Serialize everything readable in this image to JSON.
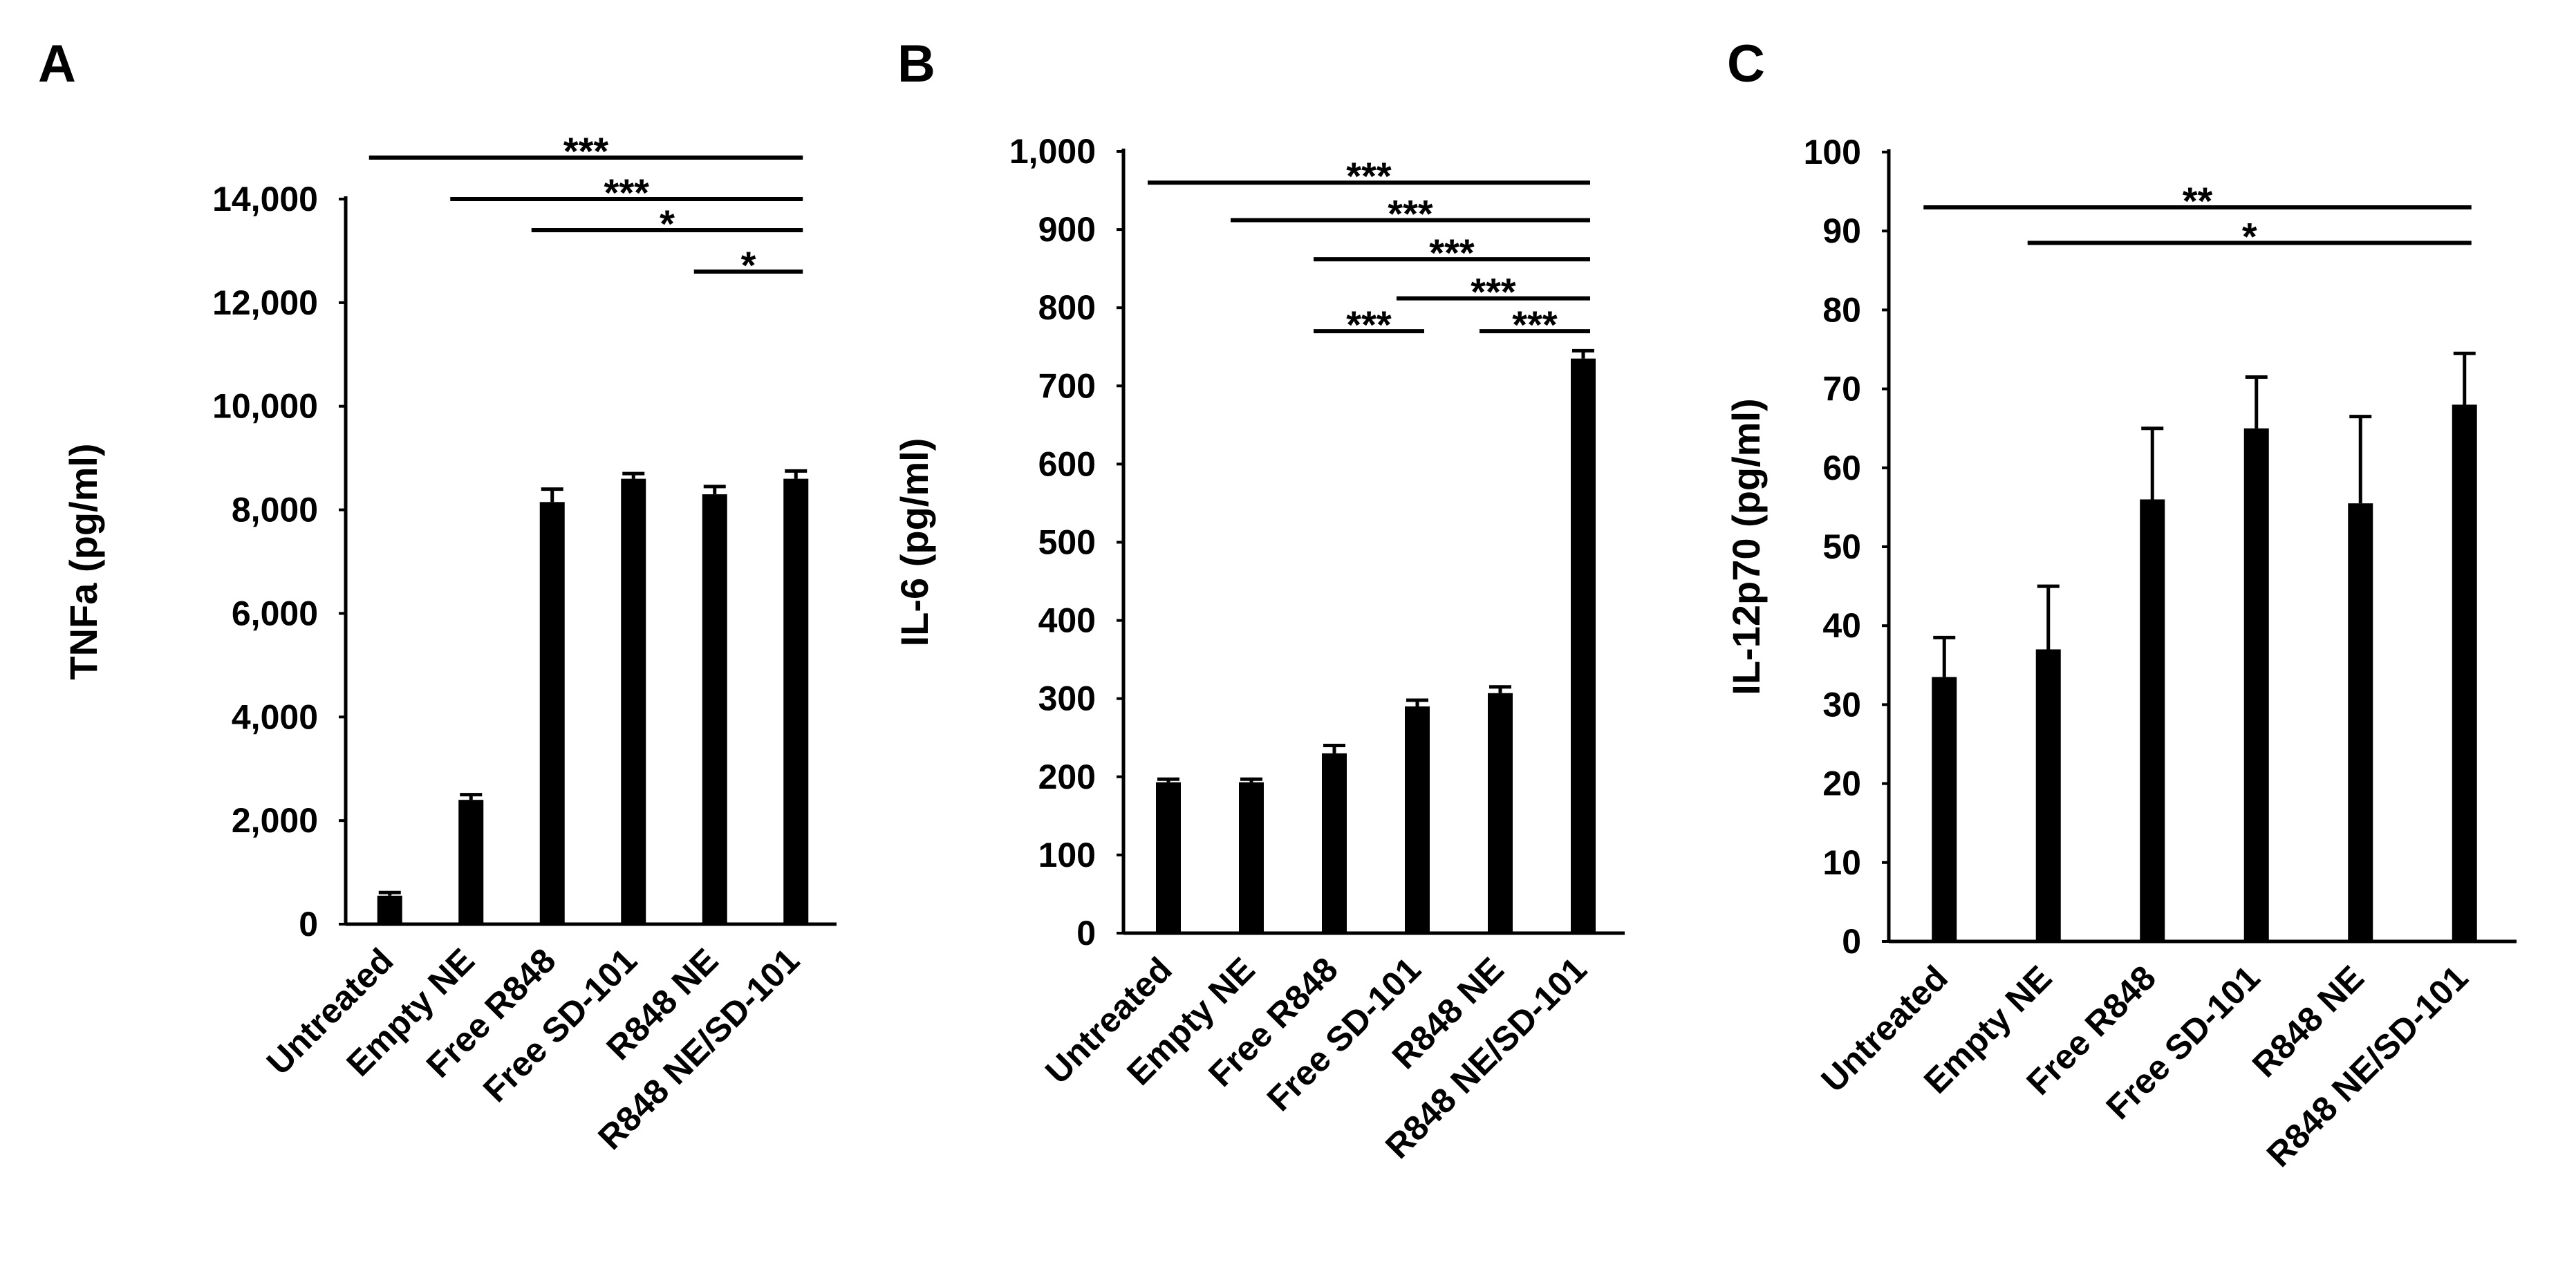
{
  "figure": {
    "panels": [
      "A",
      "B",
      "C"
    ]
  },
  "chart_data": [
    {
      "panel": "A",
      "type": "bar",
      "ylabel": "TNFa (pg/ml)",
      "xlabel": "",
      "ylim": [
        0,
        14000
      ],
      "yticks": [
        0,
        2000,
        4000,
        6000,
        8000,
        10000,
        12000,
        14000
      ],
      "ytick_labels": [
        "0",
        "2,000",
        "4,000",
        "6,000",
        "8,000",
        "10,000",
        "12,000",
        "14,000"
      ],
      "categories": [
        "Untreated",
        "Empty NE",
        "Free R848",
        "Free SD-101",
        "R848 NE",
        "R848 NE/SD-101"
      ],
      "values": [
        550,
        2400,
        8150,
        8600,
        8300,
        8600
      ],
      "errors": [
        60,
        100,
        250,
        100,
        150,
        150
      ],
      "color": "#000000",
      "significance": [
        {
          "from": 0,
          "to": 5,
          "y": 14800,
          "label": "***"
        },
        {
          "from": 1,
          "to": 5,
          "y": 14000,
          "label": "***"
        },
        {
          "from": 2,
          "to": 5,
          "y": 13400,
          "label": "*"
        },
        {
          "from": 4,
          "to": 5,
          "y": 12600,
          "label": "*"
        }
      ]
    },
    {
      "panel": "B",
      "type": "bar",
      "ylabel": "IL-6 (pg/ml)",
      "xlabel": "",
      "ylim": [
        0,
        1000
      ],
      "yticks": [
        0,
        100,
        200,
        300,
        400,
        500,
        600,
        700,
        800,
        900,
        1000
      ],
      "ytick_labels": [
        "0",
        "100",
        "200",
        "300",
        "400",
        "500",
        "600",
        "700",
        "800",
        "900",
        "1,000"
      ],
      "categories": [
        "Untreated",
        "Empty NE",
        "Free R848",
        "Free SD-101",
        "R848 NE",
        "R848 NE/SD-101"
      ],
      "values": [
        193,
        193,
        230,
        290,
        307,
        735
      ],
      "errors": [
        4,
        4,
        10,
        8,
        8,
        10
      ],
      "color": "#000000",
      "significance": [
        {
          "from": 0,
          "to": 5,
          "y": 960,
          "label": "***"
        },
        {
          "from": 1,
          "to": 5,
          "y": 912,
          "label": "***"
        },
        {
          "from": 2,
          "to": 5,
          "y": 862,
          "label": "***"
        },
        {
          "from": 3,
          "to": 5,
          "y": 812,
          "label": "***"
        },
        {
          "from": 2,
          "to": 3,
          "y": 770,
          "label": "***"
        },
        {
          "from": 4,
          "to": 5,
          "y": 770,
          "label": "***"
        }
      ]
    },
    {
      "panel": "C",
      "type": "bar",
      "ylabel": "IL-12p70 (pg/ml)",
      "xlabel": "",
      "ylim": [
        0,
        100
      ],
      "yticks": [
        0,
        10,
        20,
        30,
        40,
        50,
        60,
        70,
        80,
        90,
        100
      ],
      "ytick_labels": [
        "0",
        "10",
        "20",
        "30",
        "40",
        "50",
        "60",
        "70",
        "80",
        "90",
        "100"
      ],
      "categories": [
        "Untreated",
        "Empty NE",
        "Free R848",
        "Free SD-101",
        "R848 NE",
        "R848 NE/SD-101"
      ],
      "values": [
        33.5,
        37,
        56,
        65,
        55.5,
        68
      ],
      "errors": [
        5,
        8,
        9,
        6.5,
        11,
        6.5
      ],
      "color": "#000000",
      "significance": [
        {
          "from": 0,
          "to": 5,
          "y": 93,
          "label": "**"
        },
        {
          "from": 1,
          "to": 5,
          "y": 88.5,
          "label": "*"
        }
      ]
    }
  ]
}
